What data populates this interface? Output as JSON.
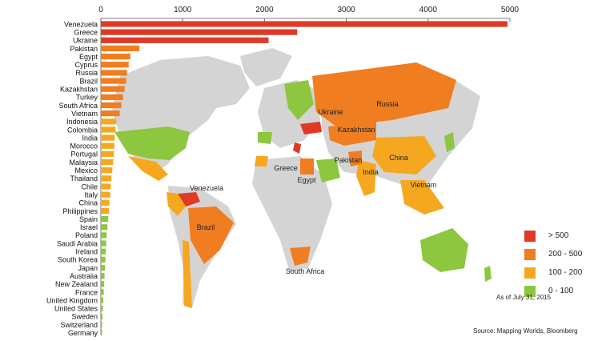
{
  "chart_data": {
    "type": "bar",
    "orientation": "horizontal",
    "xlim": [
      0,
      5000
    ],
    "x_ticks": [
      "0",
      "1000",
      "2000",
      "3000",
      "4000",
      "5000"
    ],
    "categories": [
      "Venezuela",
      "Greece",
      "Ukraine",
      "Pakistan",
      "Egypt",
      "Cyprus",
      "Russia",
      "Brazil",
      "Kazakhstan",
      "Turkey",
      "South Africa",
      "Vietnam",
      "Indonesia",
      "Colombia",
      "India",
      "Morocco",
      "Portugal",
      "Malaysia",
      "Mexico",
      "Thailand",
      "Chile",
      "Italy",
      "China",
      "Philippines",
      "Spain",
      "Israel",
      "Poland",
      "Saudi Arabia",
      "Ireland",
      "South Korea",
      "Japan",
      "Australia",
      "New Zealand",
      "France",
      "United Kingdom",
      "United States",
      "Sweden",
      "Switzerland",
      "Germany"
    ],
    "values": [
      4970,
      2400,
      2050,
      470,
      360,
      340,
      320,
      310,
      290,
      270,
      250,
      230,
      190,
      180,
      170,
      165,
      160,
      150,
      140,
      130,
      120,
      115,
      105,
      100,
      90,
      80,
      70,
      65,
      60,
      55,
      50,
      45,
      40,
      35,
      30,
      25,
      20,
      15,
      10
    ],
    "legend": [
      {
        "label": "> 500",
        "color": "#e03a26"
      },
      {
        "label": "200 - 500",
        "color": "#f07d1f"
      },
      {
        "label": "100 - 200",
        "color": "#f5a81f"
      },
      {
        "label": "0 - 100",
        "color": "#8dc63f"
      }
    ],
    "legend_position": "bottom-right",
    "grid": false,
    "map_labels": [
      "Ukraine",
      "Russia",
      "Kazakhstan",
      "Greece",
      "Pakistan",
      "China",
      "India",
      "Egypt",
      "Vietnam",
      "Venezuela",
      "Brazil",
      "South Africa"
    ]
  },
  "annotations": {
    "as_of": "As of July 31, 2015",
    "source": "Source: Mapping Worlds, Bloomberg"
  },
  "colors": {
    "high": "#e03a26",
    "mid_high": "#f07d1f",
    "mid": "#f5a81f",
    "low": "#8dc63f",
    "land": "#d4d4d4"
  }
}
